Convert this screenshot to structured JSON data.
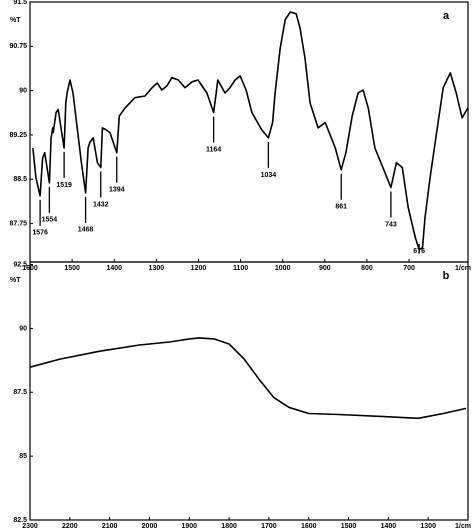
{
  "chart_data": [
    {
      "type": "line",
      "label": "a",
      "ylabel": "%T",
      "xlabel": "1/cm",
      "xlim": [
        1600,
        560
      ],
      "ylim": [
        87.1,
        91.5
      ],
      "xticks": [
        1600,
        1500,
        1400,
        1300,
        1200,
        1100,
        1000,
        900,
        800,
        700
      ],
      "yticks": [
        91.5,
        90.75,
        90,
        89.25,
        88.5,
        87.75
      ],
      "color": "#000000",
      "x": [
        1593,
        1586,
        1576,
        1570,
        1565,
        1554,
        1550,
        1546,
        1545,
        1538,
        1533,
        1519,
        1515,
        1512,
        1505,
        1498,
        1488,
        1478,
        1468,
        1462,
        1458,
        1450,
        1440,
        1432,
        1428,
        1420,
        1410,
        1394,
        1388,
        1374,
        1351,
        1327,
        1310,
        1298,
        1287,
        1275,
        1263,
        1248,
        1232,
        1215,
        1201,
        1180,
        1164,
        1158,
        1154,
        1137,
        1125,
        1113,
        1101,
        1087,
        1073,
        1050,
        1034,
        1024,
        1018,
        1006,
        994,
        982,
        968,
        959,
        947,
        935,
        916,
        899,
        875,
        861,
        850,
        835,
        821,
        809,
        797,
        781,
        760,
        743,
        730,
        716,
        702,
        685,
        676,
        668,
        662,
        650,
        633,
        619,
        602,
        588,
        574,
        560
      ],
      "values": [
        89.03,
        88.53,
        88.22,
        88.86,
        88.95,
        88.44,
        89.2,
        89.37,
        89.29,
        89.63,
        89.68,
        89.03,
        89.79,
        89.96,
        90.18,
        89.96,
        89.37,
        88.78,
        88.27,
        89.03,
        89.12,
        89.2,
        88.78,
        88.7,
        89.37,
        89.34,
        89.29,
        88.95,
        89.57,
        89.71,
        89.88,
        89.91,
        90.05,
        90.13,
        90.01,
        90.08,
        90.22,
        90.18,
        90.05,
        90.15,
        90.18,
        89.96,
        89.63,
        89.96,
        90.18,
        89.96,
        90.05,
        90.18,
        90.25,
        90.01,
        89.63,
        89.34,
        89.2,
        89.46,
        89.96,
        90.72,
        91.2,
        91.33,
        91.3,
        91.06,
        90.55,
        89.79,
        89.37,
        89.46,
        89.03,
        88.66,
        88.95,
        89.57,
        89.96,
        90.01,
        89.71,
        89.03,
        88.66,
        88.36,
        88.78,
        88.7,
        88.02,
        87.51,
        87.31,
        87.34,
        87.85,
        88.53,
        89.37,
        90.05,
        90.3,
        89.96,
        89.54,
        89.71
      ],
      "peaks": [
        1576,
        1554,
        1519,
        1468,
        1432,
        1394,
        1164,
        1034,
        861,
        743,
        676
      ]
    },
    {
      "type": "line",
      "label": "b",
      "ylabel": "%T",
      "xlabel": "1/cm",
      "xlim": [
        2300,
        1200
      ],
      "ylim": [
        82.5,
        92.6
      ],
      "xticks": [
        2300,
        2200,
        2100,
        2000,
        1900,
        1800,
        1700,
        1600,
        1500,
        1400,
        1300
      ],
      "yticks": [
        92.5,
        90,
        87.5,
        85,
        82.5
      ],
      "color": "#000000",
      "x": [
        2300,
        2225,
        2125,
        2025,
        1950,
        1900,
        1875,
        1838,
        1800,
        1762,
        1725,
        1688,
        1650,
        1600,
        1525,
        1425,
        1325,
        1262,
        1205
      ],
      "values": [
        88.48,
        88.8,
        89.11,
        89.35,
        89.47,
        89.59,
        89.63,
        89.59,
        89.39,
        88.8,
        88.01,
        87.3,
        86.91,
        86.67,
        86.63,
        86.56,
        86.48,
        86.67,
        86.87
      ]
    }
  ]
}
